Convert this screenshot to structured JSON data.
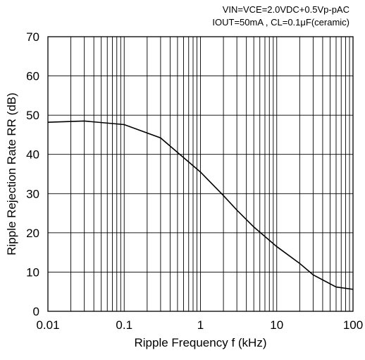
{
  "chart_data": {
    "type": "line",
    "annotations": [
      "VIN=VCE=2.0VDC+0.5Vp-pAC",
      "IOUT=50mA , CL=0.1μF(ceramic)"
    ],
    "xlabel": "Ripple Frequency f (kHz)",
    "ylabel": "Ripple Rejection Rate RR (dB)",
    "xscale": "log",
    "xlim": [
      0.01,
      100
    ],
    "ylim": [
      0,
      70
    ],
    "grid": true,
    "x_tick_labels": [
      "0.01",
      "0.1",
      "1",
      "10",
      "100"
    ],
    "x_tick_values": [
      0.01,
      0.1,
      1,
      10,
      100
    ],
    "y_tick_labels": [
      "0",
      "10",
      "20",
      "30",
      "40",
      "50",
      "60",
      "70"
    ],
    "y_tick_values": [
      0,
      10,
      20,
      30,
      40,
      50,
      60,
      70
    ],
    "series": [
      {
        "x": [
          0.01,
          0.03,
          0.1,
          0.3,
          1,
          2,
          3,
          5,
          10,
          20,
          30,
          60,
          100
        ],
        "y": [
          48.2,
          48.5,
          47.6,
          44.2,
          35.5,
          29.5,
          25.8,
          21.5,
          16.5,
          12.2,
          9.3,
          6.2,
          5.6
        ]
      }
    ]
  }
}
